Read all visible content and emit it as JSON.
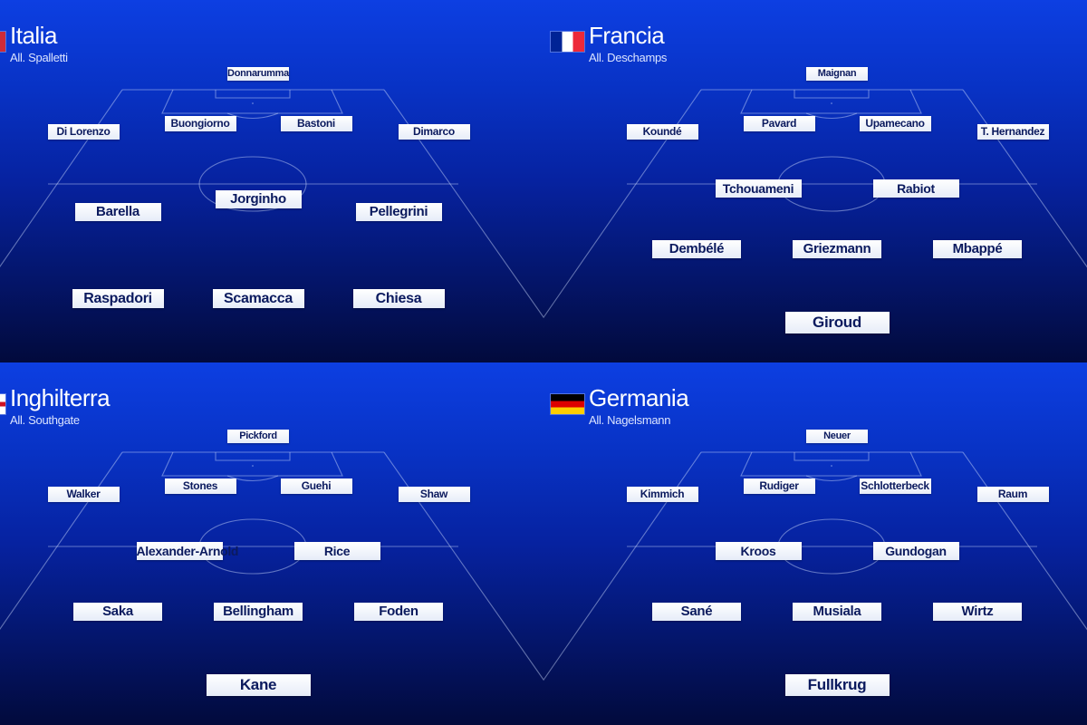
{
  "teams": [
    {
      "name": "Italia",
      "coach": "All. Spalletti",
      "flag": {
        "type": "vertical",
        "colors": [
          "#009246",
          "#ffffff",
          "#ce2b37"
        ]
      },
      "players": [
        "Donnarumma",
        "Di Lorenzo",
        "Buongiorno",
        "Bastoni",
        "Dimarco",
        "Barella",
        "Jorginho",
        "Pellegrini",
        "Raspadori",
        "Scamacca",
        "Chiesa"
      ]
    },
    {
      "name": "Francia",
      "coach": "All. Deschamps",
      "flag": {
        "type": "vertical",
        "colors": [
          "#002395",
          "#ffffff",
          "#ed2939"
        ]
      },
      "players": [
        "Maignan",
        "Koundé",
        "Pavard",
        "Upamecano",
        "T. Hernandez",
        "Tchouameni",
        "Rabiot",
        "Dembélé",
        "Griezmann",
        "Mbappé",
        "Giroud"
      ]
    },
    {
      "name": "Inghilterra",
      "coach": "All. Southgate",
      "flag": {
        "type": "cross",
        "colors": [
          "#ffffff",
          "#ce1124"
        ]
      },
      "players": [
        "Pickford",
        "Walker",
        "Stones",
        "Guehi",
        "Shaw",
        "Alexander-Arnold",
        "Rice",
        "Saka",
        "Bellingham",
        "Foden",
        "Kane"
      ]
    },
    {
      "name": "Germania",
      "coach": "All. Nagelsmann",
      "flag": {
        "type": "horizontal",
        "colors": [
          "#000000",
          "#dd0000",
          "#ffce00"
        ]
      },
      "players": [
        "Neuer",
        "Kimmich",
        "Rudiger",
        "Schlotterbeck",
        "Raum",
        "Kroos",
        "Gundogan",
        "Sané",
        "Musiala",
        "Wirtz",
        "Fullkrug"
      ]
    }
  ]
}
